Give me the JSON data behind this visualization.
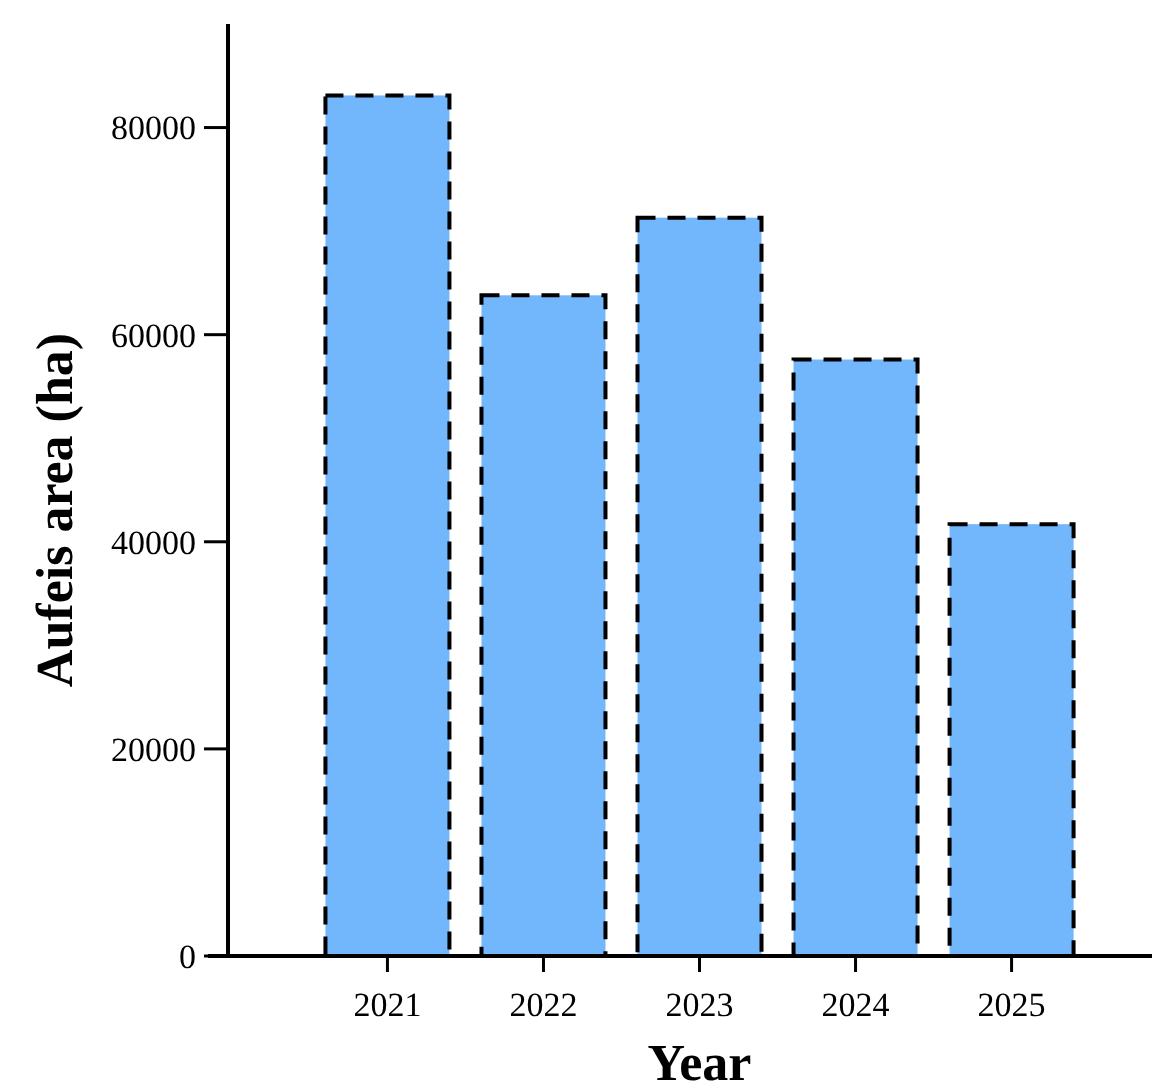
{
  "chart_data": {
    "type": "bar",
    "xlabel": "Year",
    "ylabel": "Aufeis area (ha)",
    "categories": [
      "2021",
      "2022",
      "2023",
      "2024",
      "2025"
    ],
    "values": [
      83100,
      63800,
      71300,
      57600,
      41700
    ],
    "color": "#72b6fb",
    "line_style": "dashed",
    "ylim": [
      0,
      90000
    ],
    "yticks": [
      0,
      20000,
      40000,
      60000,
      80000
    ]
  }
}
